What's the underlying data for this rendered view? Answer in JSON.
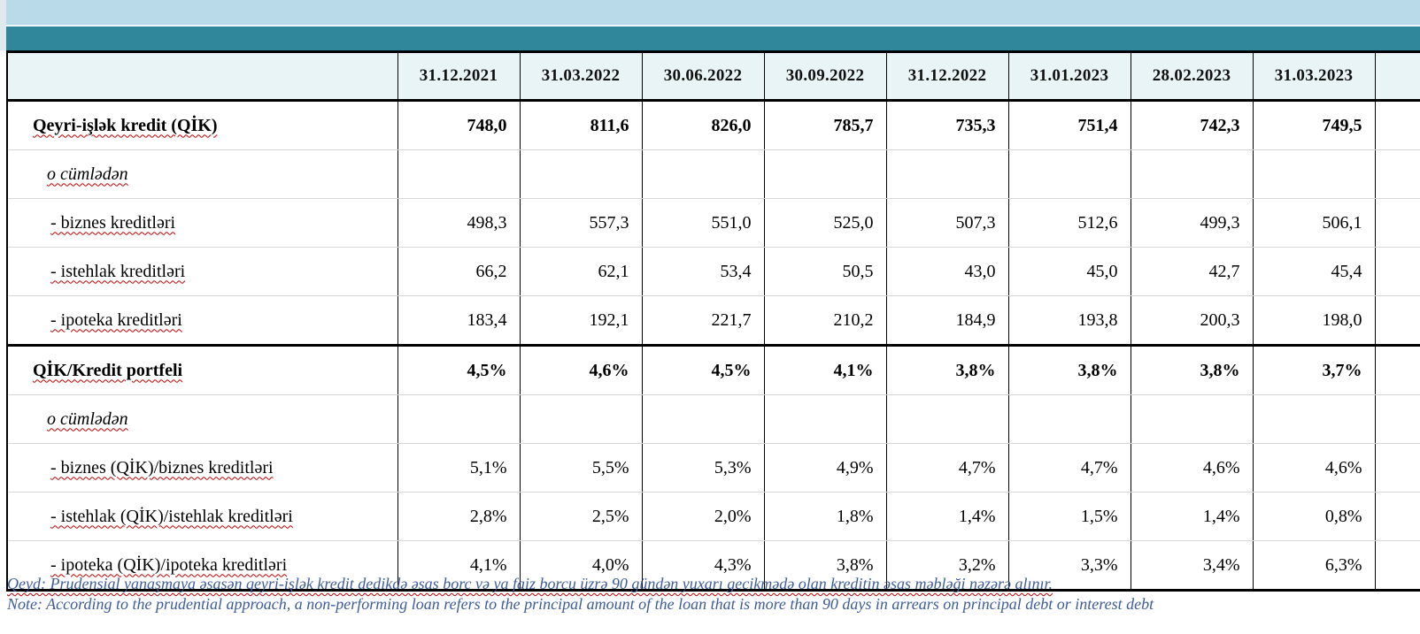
{
  "banner": {
    "light_band_color": "#b9dbe9",
    "teal_band_color": "#30869b"
  },
  "colors": {
    "header_bg": "#e9f4f7",
    "table_border": "#000000",
    "row_separator": "#d6d6d6",
    "note_text": "#3d5c9c",
    "spellcheck_underline": "#c00000"
  },
  "table": {
    "columns": [
      "31.12.2021",
      "31.03.2022",
      "30.06.2022",
      "30.09.2022",
      "31.12.2022",
      "31.01.2023",
      "28.02.2023",
      "31.03.2023"
    ],
    "rows": [
      {
        "label": "Qeyri-işlək kredit (QİK)",
        "bold": true,
        "italic": false,
        "indent": 0,
        "section": false,
        "spellcheck": true,
        "values": [
          "748,0",
          "811,6",
          "826,0",
          "785,7",
          "735,3",
          "751,4",
          "742,3",
          "749,5"
        ]
      },
      {
        "label": "o cümlədən",
        "bold": false,
        "italic": true,
        "indent": 1,
        "section": false,
        "spellcheck": true,
        "values": [
          "",
          "",
          "",
          "",
          "",
          "",
          "",
          ""
        ]
      },
      {
        "label": "- biznes kreditləri",
        "bold": false,
        "italic": false,
        "indent": 2,
        "section": false,
        "spellcheck": true,
        "values": [
          "498,3",
          "557,3",
          "551,0",
          "525,0",
          "507,3",
          "512,6",
          "499,3",
          "506,1"
        ]
      },
      {
        "label": "- istehlak kreditləri",
        "bold": false,
        "italic": false,
        "indent": 2,
        "section": false,
        "spellcheck": true,
        "values": [
          "66,2",
          "62,1",
          "53,4",
          "50,5",
          "43,0",
          "45,0",
          "42,7",
          "45,4"
        ]
      },
      {
        "label": "- ipoteka kreditləri",
        "bold": false,
        "italic": false,
        "indent": 2,
        "section": false,
        "spellcheck": true,
        "values": [
          "183,4",
          "192,1",
          "221,7",
          "210,2",
          "184,9",
          "193,8",
          "200,3",
          "198,0"
        ]
      },
      {
        "label": "QİK/Kredit portfeli",
        "bold": true,
        "italic": false,
        "indent": 0,
        "section": true,
        "spellcheck": true,
        "values": [
          "4,5%",
          "4,6%",
          "4,5%",
          "4,1%",
          "3,8%",
          "3,8%",
          "3,8%",
          "3,7%"
        ]
      },
      {
        "label": "o cümlədən",
        "bold": false,
        "italic": true,
        "indent": 1,
        "section": false,
        "spellcheck": true,
        "values": [
          "",
          "",
          "",
          "",
          "",
          "",
          "",
          ""
        ]
      },
      {
        "label": "- biznes (QİK)/biznes kreditləri",
        "bold": false,
        "italic": false,
        "indent": 2,
        "section": false,
        "spellcheck": true,
        "values": [
          "5,1%",
          "5,5%",
          "5,3%",
          "4,9%",
          "4,7%",
          "4,7%",
          "4,6%",
          "4,6%"
        ]
      },
      {
        "label": "- istehlak (QİK)/istehlak kreditləri",
        "bold": false,
        "italic": false,
        "indent": 2,
        "section": false,
        "spellcheck": true,
        "values": [
          "2,8%",
          "2,5%",
          "2,0%",
          "1,8%",
          "1,4%",
          "1,5%",
          "1,4%",
          "0,8%"
        ]
      },
      {
        "label": "- ipoteka (QİK)/ipoteka kreditləri",
        "bold": false,
        "italic": false,
        "indent": 2,
        "section": false,
        "spellcheck": true,
        "values": [
          "4,1%",
          "4,0%",
          "4,3%",
          "3,8%",
          "3,2%",
          "3,3%",
          "3,4%",
          "6,3%"
        ]
      }
    ]
  },
  "notes": {
    "az": "Qeyd: Prudensial yanaşmaya əsasən qeyri-işlək kredit dedikdə əsas borc və ya faiz borcu üzrə 90 gündən yuxarı gecikmədə olan kreditin əsas məbləği nəzərə alınır.",
    "en": "Note: According to the prudential approach, a non-performing loan refers to the principal amount of the loan that is more than 90 days in arrears on principal debt or interest debt"
  }
}
